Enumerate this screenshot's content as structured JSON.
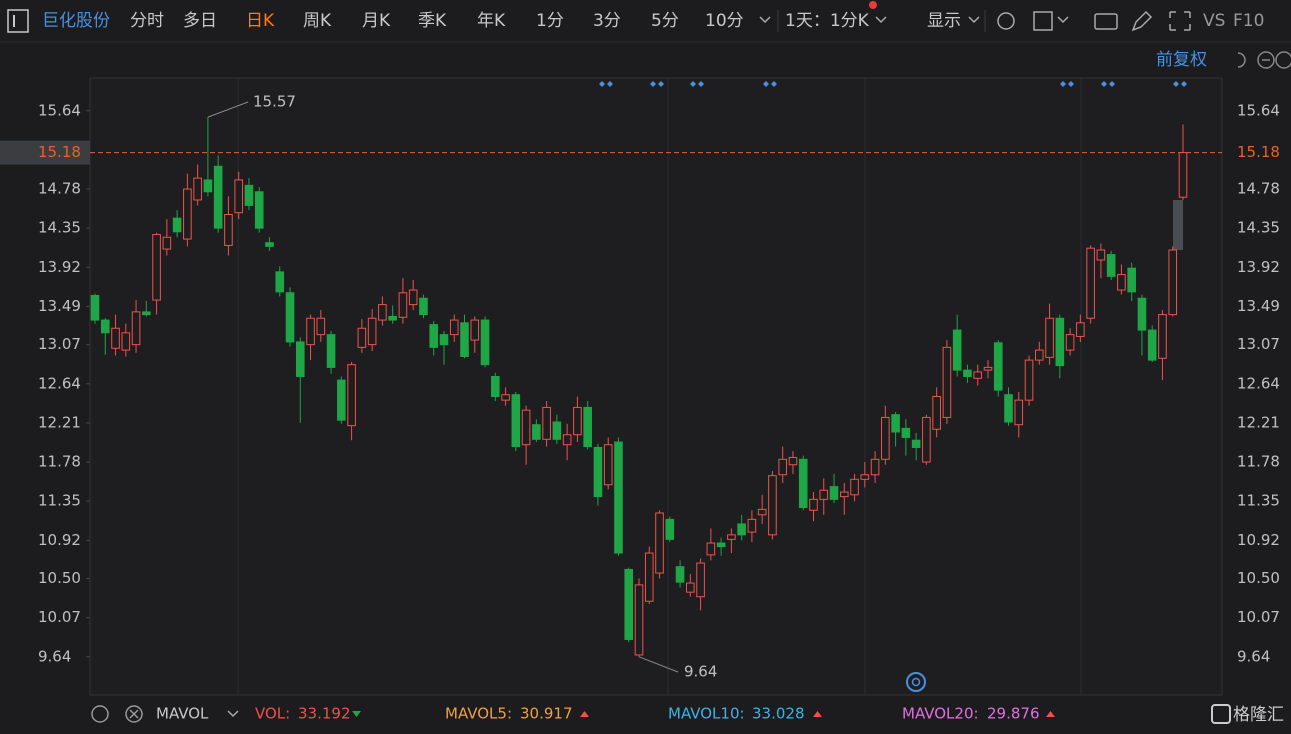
{
  "toolbar": {
    "stock_name": "巨化股份",
    "tabs": [
      "分时",
      "多日",
      "日K",
      "周K",
      "月K",
      "季K",
      "年K",
      "1分",
      "3分",
      "5分",
      "10分"
    ],
    "active_tab_index": 2,
    "period": "1天：1分K",
    "display": "显示",
    "vs": "VS",
    "f10": "F10"
  },
  "adjust": "前复权",
  "chart_data": {
    "type": "candlestick",
    "open": [
      13.61,
      13.34,
      13.03,
      13.01,
      13.07,
      13.43,
      13.56,
      14.12,
      14.46,
      14.23,
      14.66,
      14.88,
      15.03,
      14.16,
      14.52,
      14.82,
      14.75,
      14.19,
      13.87,
      13.64,
      13.1,
      13.07,
      13.18,
      13.18,
      12.68,
      12.18,
      13.04,
      13.07,
      13.34,
      13.38,
      13.37,
      13.51,
      13.58,
      13.29,
      13.18,
      13.18,
      13.31,
      13.12,
      13.34,
      12.72,
      12.46,
      12.52,
      11.97,
      12.19,
      12.03,
      12.22,
      11.97,
      12.08,
      12.38,
      11.94,
      11.53,
      12.0,
      10.6,
      9.66,
      10.25,
      10.56,
      11.15,
      10.63,
      10.35,
      10.3,
      10.76,
      10.89,
      10.93,
      11.1,
      11.01,
      11.2,
      10.98,
      11.64,
      11.75,
      11.81,
      11.25,
      11.37,
      11.51,
      11.4,
      11.42,
      11.59,
      11.64,
      11.81,
      12.3,
      12.15,
      12.02,
      11.78,
      12.14,
      12.27,
      13.23,
      12.79,
      12.7,
      12.79,
      13.09,
      12.52,
      12.19,
      12.46,
      12.9,
      12.93,
      13.36,
      13.01,
      13.16,
      13.36,
      14.0,
      14.06,
      13.67,
      13.91,
      13.58,
      13.23,
      12.92,
      13.4,
      14.69
    ],
    "high": [
      13.63,
      13.36,
      13.4,
      13.3,
      13.56,
      13.55,
      14.3,
      14.45,
      14.55,
      14.95,
      15.05,
      15.57,
      15.15,
      14.7,
      14.97,
      14.9,
      14.8,
      14.25,
      13.93,
      13.7,
      13.15,
      13.4,
      13.45,
      13.22,
      12.72,
      12.88,
      13.35,
      13.46,
      13.6,
      13.5,
      13.8,
      13.78,
      13.62,
      13.33,
      13.22,
      13.4,
      13.4,
      13.38,
      13.38,
      12.76,
      12.6,
      12.55,
      12.4,
      12.25,
      12.45,
      12.3,
      12.2,
      12.5,
      12.45,
      11.98,
      12.05,
      12.05,
      10.62,
      10.5,
      10.85,
      11.25,
      11.18,
      10.7,
      10.55,
      10.72,
      11.05,
      10.95,
      11.05,
      11.2,
      11.25,
      11.42,
      11.68,
      11.95,
      11.9,
      11.85,
      11.45,
      11.6,
      11.65,
      11.55,
      11.65,
      11.78,
      11.9,
      12.4,
      12.33,
      12.25,
      12.1,
      12.3,
      12.6,
      13.12,
      13.4,
      12.85,
      12.85,
      12.9,
      13.12,
      12.6,
      12.55,
      12.95,
      13.1,
      13.52,
      13.4,
      13.25,
      13.4,
      14.16,
      14.18,
      14.1,
      13.95,
      13.97,
      13.62,
      13.28,
      13.45,
      14.15,
      15.49
    ],
    "low": [
      13.3,
      12.96,
      12.95,
      12.94,
      12.98,
      13.38,
      13.4,
      14.05,
      14.25,
      14.15,
      14.6,
      14.7,
      14.3,
      14.05,
      14.45,
      14.55,
      14.3,
      14.1,
      13.6,
      13.05,
      12.21,
      12.9,
      13.1,
      12.75,
      12.2,
      12.02,
      12.98,
      13.0,
      13.28,
      13.3,
      13.3,
      13.45,
      13.36,
      12.95,
      12.85,
      13.1,
      12.92,
      12.98,
      12.82,
      12.45,
      12.4,
      11.9,
      11.75,
      12.0,
      11.95,
      11.98,
      11.8,
      12.0,
      11.92,
      11.3,
      11.48,
      10.75,
      9.8,
      9.64,
      10.22,
      10.5,
      10.9,
      10.4,
      10.3,
      10.15,
      10.7,
      10.75,
      10.78,
      10.92,
      10.9,
      11.1,
      10.93,
      11.55,
      11.65,
      11.25,
      11.13,
      11.2,
      11.33,
      11.2,
      11.35,
      11.5,
      11.55,
      11.75,
      11.95,
      11.85,
      11.8,
      11.75,
      12.05,
      12.2,
      12.72,
      12.65,
      12.62,
      12.7,
      12.5,
      12.18,
      12.05,
      12.4,
      12.85,
      12.85,
      12.7,
      12.95,
      13.1,
      13.3,
      13.8,
      13.78,
      13.62,
      13.55,
      12.95,
      12.88,
      12.68,
      13.38,
      14.66
    ],
    "close": [
      13.34,
      13.2,
      13.25,
      13.2,
      13.43,
      13.4,
      14.28,
      14.25,
      14.31,
      14.78,
      14.9,
      14.75,
      14.35,
      14.5,
      14.88,
      14.6,
      14.35,
      14.15,
      13.65,
      13.1,
      12.72,
      13.36,
      13.36,
      12.82,
      12.24,
      12.85,
      13.25,
      13.36,
      13.51,
      13.34,
      13.64,
      13.67,
      13.4,
      13.04,
      13.07,
      13.34,
      12.94,
      13.34,
      12.85,
      12.5,
      12.52,
      11.95,
      12.35,
      12.03,
      12.38,
      12.03,
      12.08,
      12.38,
      11.95,
      11.4,
      11.97,
      10.78,
      9.83,
      10.43,
      10.78,
      11.22,
      10.93,
      10.46,
      10.45,
      10.67,
      10.89,
      10.85,
      10.98,
      10.98,
      11.15,
      11.26,
      11.63,
      11.81,
      11.83,
      11.28,
      11.37,
      11.47,
      11.37,
      11.45,
      11.59,
      11.64,
      11.81,
      12.27,
      12.11,
      12.05,
      11.94,
      12.27,
      12.5,
      13.04,
      12.79,
      12.72,
      12.77,
      12.82,
      12.57,
      12.22,
      12.46,
      12.9,
      13.01,
      13.36,
      12.84,
      13.18,
      13.31,
      14.13,
      14.11,
      13.82,
      13.84,
      13.65,
      13.23,
      12.9,
      13.4,
      14.11,
      15.18
    ],
    "up_color": "#f0524b",
    "down_color": "#1fa647",
    "last_price": 15.18,
    "last_price_color": "#e8602c",
    "max_index": 11,
    "min_index": 53,
    "ylim": [
      9.22,
      16.0
    ],
    "yticks": [
      15.64,
      14.78,
      14.35,
      13.92,
      13.49,
      13.07,
      12.64,
      12.21,
      11.78,
      11.35,
      10.92,
      {
        "value": 10.5,
        "label": "10.50"
      },
      10.07,
      9.64
    ]
  },
  "indicator": {
    "name": "MAVOL",
    "items": [
      {
        "label": "VOL:",
        "value": 33.192,
        "color": "#f0524b",
        "trend": "down"
      },
      {
        "label": "MAVOL5:",
        "value": 30.917,
        "color": "#f0a040",
        "trend": "up"
      },
      {
        "label": "MAVOL10:",
        "value": 33.028,
        "color": "#3ab4e6",
        "trend": "up"
      },
      {
        "label": "MAVOL20:",
        "value": 29.876,
        "color": "#e070e0",
        "trend": "up"
      }
    ]
  },
  "watermark": "格隆汇"
}
